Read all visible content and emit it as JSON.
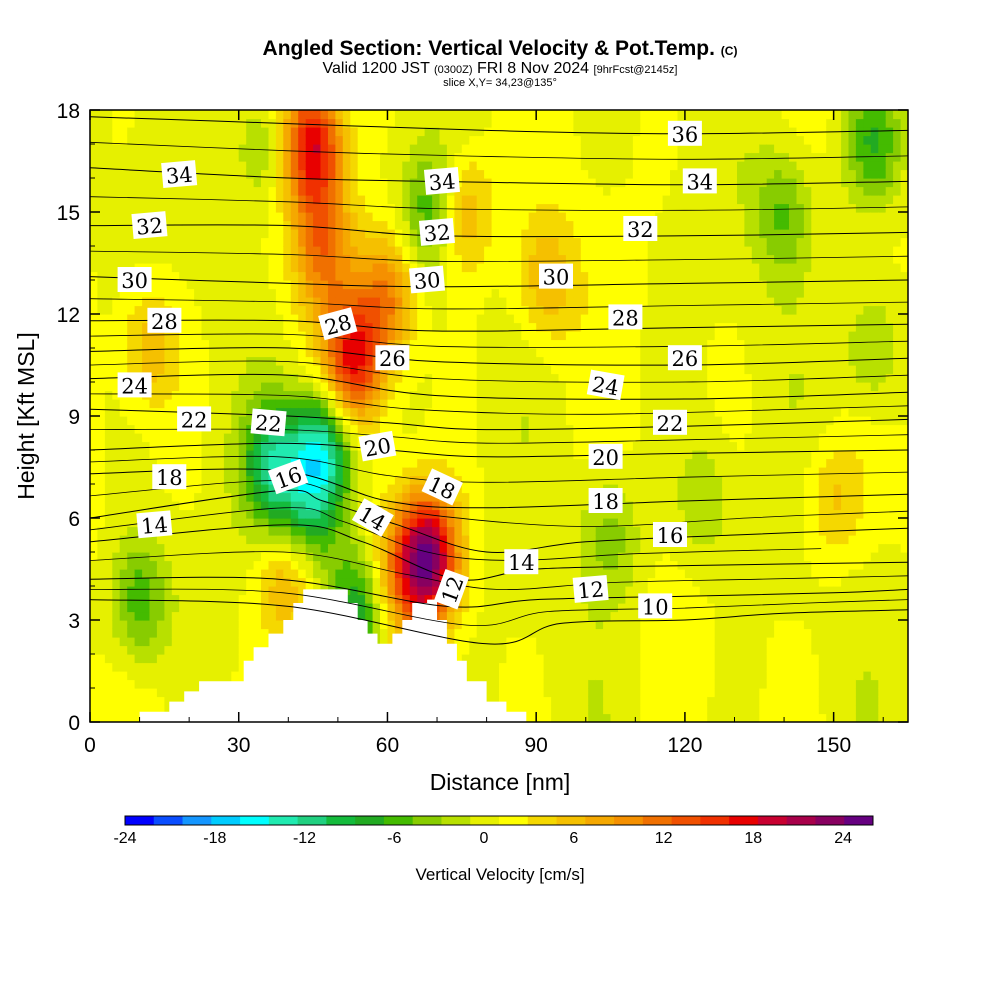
{
  "header": {
    "title": "Angled Section: Vertical Velocity & Pot.Temp.",
    "title_mark": "(C)",
    "valid_prefix": "Valid 1200 JST",
    "valid_utc": "(0300Z)",
    "valid_date": "FRI 8 Nov 2024",
    "forecast": "[9hrFcst@2145z]",
    "slice": "slice X,Y= 34,23@135°"
  },
  "chart_data": {
    "type": "heatmap",
    "title": "Angled Section: Vertical Velocity & Pot.Temp. (C)",
    "xlabel": "Distance [nm]",
    "ylabel": "Height [Kft MSL]",
    "xlim": [
      0,
      165
    ],
    "ylim": [
      0,
      18
    ],
    "x_ticks": [
      "0",
      "30",
      "60",
      "90",
      "120",
      "150"
    ],
    "y_ticks": [
      "0",
      "3",
      "6",
      "9",
      "12",
      "15",
      "18"
    ],
    "colorbar": {
      "label": "Vertical Velocity [cm/s]",
      "range": [
        -24,
        26
      ],
      "step": 2,
      "tick_values": [
        -24,
        -18,
        -12,
        -6,
        0,
        6,
        12,
        18,
        24
      ],
      "tick_labels": [
        "-24",
        "-18",
        "-12",
        "-6",
        "0",
        "6",
        "12",
        "18",
        "24"
      ],
      "colors": [
        "#0000ff",
        "#0a4dff",
        "#1496ff",
        "#00ccff",
        "#00ffff",
        "#20eab0",
        "#20d080",
        "#14bb3c",
        "#22aa22",
        "#44bb00",
        "#88cc00",
        "#b8e000",
        "#e6f000",
        "#ffff00",
        "#f5d800",
        "#f5c000",
        "#f5a800",
        "#f59000",
        "#f07000",
        "#f05000",
        "#f03000",
        "#e80000",
        "#c80030",
        "#a8004a",
        "#880060",
        "#660080"
      ]
    },
    "vertical_velocity_features": [
      {
        "x": 47,
        "y": 8.0,
        "value": -16
      },
      {
        "x": 37,
        "y": 7.5,
        "value": -12
      },
      {
        "x": 55,
        "y": 3.5,
        "value": -12
      },
      {
        "x": 44,
        "y": 6.0,
        "value": -8
      },
      {
        "x": 10,
        "y": 3.6,
        "value": -8
      },
      {
        "x": 69,
        "y": 15.0,
        "value": -8
      },
      {
        "x": 158,
        "y": 17.0,
        "value": -8
      },
      {
        "x": 140,
        "y": 15.0,
        "value": -6
      },
      {
        "x": 158,
        "y": 11.0,
        "value": -5
      },
      {
        "x": 105,
        "y": 5.5,
        "value": -5
      },
      {
        "x": 124,
        "y": 6.5,
        "value": -4
      },
      {
        "x": 35,
        "y": 17.0,
        "value": -5
      },
      {
        "x": 68,
        "y": 4.8,
        "value": 24
      },
      {
        "x": 45,
        "y": 17.0,
        "value": 18
      },
      {
        "x": 53,
        "y": 10.6,
        "value": 16
      },
      {
        "x": 47,
        "y": 14.0,
        "value": 10
      },
      {
        "x": 60,
        "y": 12.5,
        "value": 10
      },
      {
        "x": 75,
        "y": 15.0,
        "value": 8
      },
      {
        "x": 92,
        "y": 13.0,
        "value": 6
      },
      {
        "x": 60,
        "y": 4.2,
        "value": 8
      },
      {
        "x": 40,
        "y": 4.2,
        "value": 8
      },
      {
        "x": 12,
        "y": 11.0,
        "value": 6
      },
      {
        "x": 150,
        "y": 6.5,
        "value": 5
      }
    ],
    "terrain_profile": [
      [
        0,
        0
      ],
      [
        10,
        0
      ],
      [
        10,
        0.3
      ],
      [
        16,
        0.3
      ],
      [
        16,
        0.6
      ],
      [
        19,
        0.6
      ],
      [
        19,
        0.9
      ],
      [
        22,
        0.9
      ],
      [
        22,
        1.2
      ],
      [
        31,
        1.2
      ],
      [
        31,
        1.8
      ],
      [
        33,
        1.8
      ],
      [
        33,
        2.2
      ],
      [
        36,
        2.2
      ],
      [
        36,
        2.6
      ],
      [
        39,
        2.6
      ],
      [
        39,
        3.0
      ],
      [
        41,
        3.0
      ],
      [
        41,
        3.5
      ],
      [
        43,
        3.5
      ],
      [
        43,
        3.9
      ],
      [
        52,
        3.9
      ],
      [
        52,
        3.5
      ],
      [
        54,
        3.5
      ],
      [
        54,
        3.0
      ],
      [
        56,
        3.0
      ],
      [
        56,
        2.6
      ],
      [
        58,
        2.6
      ],
      [
        58,
        2.3
      ],
      [
        61,
        2.3
      ],
      [
        61,
        2.6
      ],
      [
        63,
        2.6
      ],
      [
        63,
        3.0
      ],
      [
        65,
        3.0
      ],
      [
        65,
        3.5
      ],
      [
        68,
        3.5
      ],
      [
        68,
        3.6
      ],
      [
        70,
        3.6
      ],
      [
        70,
        3.0
      ],
      [
        72,
        3.0
      ],
      [
        72,
        2.3
      ],
      [
        74,
        2.3
      ],
      [
        74,
        1.8
      ],
      [
        76,
        1.8
      ],
      [
        76,
        1.2
      ],
      [
        80,
        1.2
      ],
      [
        80,
        0.6
      ],
      [
        84,
        0.6
      ],
      [
        84,
        0.3
      ],
      [
        88,
        0.3
      ],
      [
        88,
        0
      ],
      [
        165,
        0
      ]
    ],
    "potential_temperature_contours": [
      {
        "label": "10",
        "points": [
          [
            0,
            3.6
          ],
          [
            40,
            3.4
          ],
          [
            80,
            2.3
          ],
          [
            95,
            2.9
          ],
          [
            120,
            3.0
          ],
          [
            140,
            3.2
          ],
          [
            165,
            3.3
          ]
        ]
      },
      {
        "label": "12",
        "points": [
          [
            0,
            4.2
          ],
          [
            38,
            4.2
          ],
          [
            72,
            3.4
          ],
          [
            90,
            3.6
          ],
          [
            120,
            3.7
          ],
          [
            150,
            3.8
          ],
          [
            165,
            3.9
          ]
        ]
      },
      {
        "label": "14",
        "points": [
          [
            0,
            5.3
          ],
          [
            40,
            5.8
          ],
          [
            55,
            5.3
          ],
          [
            74,
            4.2
          ],
          [
            90,
            4.5
          ],
          [
            120,
            4.6
          ],
          [
            165,
            4.7
          ]
        ]
      },
      {
        "label": "16",
        "points": [
          [
            0,
            6.0
          ],
          [
            38,
            6.8
          ],
          [
            47,
            6.5
          ],
          [
            62,
            5.8
          ],
          [
            80,
            5.0
          ],
          [
            100,
            5.3
          ],
          [
            130,
            5.5
          ],
          [
            165,
            5.7
          ]
        ]
      },
      {
        "label": "18",
        "points": [
          [
            0,
            7.3
          ],
          [
            38,
            7.4
          ],
          [
            60,
            6.5
          ],
          [
            80,
            6.3
          ],
          [
            120,
            6.5
          ],
          [
            165,
            6.7
          ]
        ]
      },
      {
        "label": "20",
        "points": [
          [
            0,
            8.0
          ],
          [
            38,
            8.2
          ],
          [
            60,
            8.0
          ],
          [
            80,
            7.8
          ],
          [
            120,
            7.9
          ],
          [
            165,
            8.0
          ]
        ]
      },
      {
        "label": "22",
        "points": [
          [
            0,
            9.2
          ],
          [
            40,
            9.0
          ],
          [
            60,
            8.8
          ],
          [
            80,
            8.6
          ],
          [
            120,
            8.7
          ],
          [
            165,
            8.9
          ]
        ]
      },
      {
        "label": "24",
        "points": [
          [
            0,
            10.1
          ],
          [
            40,
            10.2
          ],
          [
            70,
            9.6
          ],
          [
            120,
            9.5
          ],
          [
            165,
            9.7
          ]
        ]
      },
      {
        "label": "26",
        "points": [
          [
            0,
            10.9
          ],
          [
            40,
            11.0
          ],
          [
            70,
            10.6
          ],
          [
            120,
            10.5
          ],
          [
            165,
            10.7
          ]
        ]
      },
      {
        "label": "28",
        "points": [
          [
            0,
            11.8
          ],
          [
            40,
            11.8
          ],
          [
            70,
            11.5
          ],
          [
            120,
            11.6
          ],
          [
            165,
            11.7
          ]
        ]
      },
      {
        "label": "30",
        "points": [
          [
            0,
            13.1
          ],
          [
            40,
            12.9
          ],
          [
            70,
            12.8
          ],
          [
            120,
            12.9
          ],
          [
            165,
            13.0
          ]
        ]
      },
      {
        "label": "32",
        "points": [
          [
            0,
            14.6
          ],
          [
            40,
            14.6
          ],
          [
            70,
            14.3
          ],
          [
            120,
            14.3
          ],
          [
            165,
            14.4
          ]
        ]
      },
      {
        "label": "34",
        "points": [
          [
            0,
            16.3
          ],
          [
            40,
            16.0
          ],
          [
            70,
            15.9
          ],
          [
            120,
            15.8
          ],
          [
            165,
            15.9
          ]
        ]
      },
      {
        "label": "36",
        "points": [
          [
            0,
            17.8
          ],
          [
            40,
            17.6
          ],
          [
            80,
            17.4
          ],
          [
            120,
            17.3
          ],
          [
            165,
            17.4
          ]
        ]
      }
    ],
    "contour_labels": [
      {
        "text": "34",
        "x": 18,
        "y": 16.1,
        "rot": -5
      },
      {
        "text": "32",
        "x": 12,
        "y": 14.6,
        "rot": -5
      },
      {
        "text": "30",
        "x": 9,
        "y": 13.0,
        "rot": 0
      },
      {
        "text": "28",
        "x": 15,
        "y": 11.8,
        "rot": 0
      },
      {
        "text": "24",
        "x": 9,
        "y": 9.9,
        "rot": 0
      },
      {
        "text": "22",
        "x": 21,
        "y": 8.9,
        "rot": 0
      },
      {
        "text": "18",
        "x": 16,
        "y": 7.2,
        "rot": 0
      },
      {
        "text": "14",
        "x": 13,
        "y": 5.8,
        "rot": -5
      },
      {
        "text": "22",
        "x": 36,
        "y": 8.8,
        "rot": 5
      },
      {
        "text": "16",
        "x": 40,
        "y": 7.2,
        "rot": -20
      },
      {
        "text": "28",
        "x": 50,
        "y": 11.7,
        "rot": -15
      },
      {
        "text": "26",
        "x": 61,
        "y": 10.7,
        "rot": 0
      },
      {
        "text": "20",
        "x": 58,
        "y": 8.1,
        "rot": -10
      },
      {
        "text": "14",
        "x": 57,
        "y": 6.0,
        "rot": 30
      },
      {
        "text": "34",
        "x": 71,
        "y": 15.9,
        "rot": -5
      },
      {
        "text": "32",
        "x": 70,
        "y": 14.4,
        "rot": -5
      },
      {
        "text": "30",
        "x": 68,
        "y": 13.0,
        "rot": -5
      },
      {
        "text": "18",
        "x": 71,
        "y": 6.9,
        "rot": 25
      },
      {
        "text": "12",
        "x": 73,
        "y": 3.9,
        "rot": -70
      },
      {
        "text": "14",
        "x": 87,
        "y": 4.7,
        "rot": 0
      },
      {
        "text": "30",
        "x": 94,
        "y": 13.1,
        "rot": 0
      },
      {
        "text": "12",
        "x": 101,
        "y": 3.9,
        "rot": -5
      },
      {
        "text": "24",
        "x": 104,
        "y": 9.9,
        "rot": 10
      },
      {
        "text": "28",
        "x": 108,
        "y": 11.9,
        "rot": 0
      },
      {
        "text": "20",
        "x": 104,
        "y": 7.8,
        "rot": 0
      },
      {
        "text": "18",
        "x": 104,
        "y": 6.5,
        "rot": 0
      },
      {
        "text": "32",
        "x": 111,
        "y": 14.5,
        "rot": 0
      },
      {
        "text": "10",
        "x": 114,
        "y": 3.4,
        "rot": 0
      },
      {
        "text": "16",
        "x": 117,
        "y": 5.5,
        "rot": 0
      },
      {
        "text": "22",
        "x": 117,
        "y": 8.8,
        "rot": 0
      },
      {
        "text": "26",
        "x": 120,
        "y": 10.7,
        "rot": 0
      },
      {
        "text": "36",
        "x": 120,
        "y": 17.3,
        "rot": 0
      },
      {
        "text": "34",
        "x": 123,
        "y": 15.9,
        "rot": 0
      }
    ]
  }
}
